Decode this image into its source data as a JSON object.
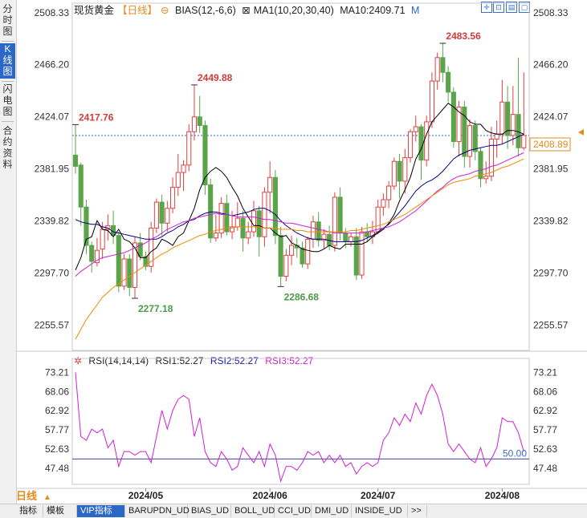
{
  "left_tabs": [
    {
      "label": "分时图",
      "active": false
    },
    {
      "label": "K线图",
      "active": true
    },
    {
      "label": "闪电图",
      "active": false
    },
    {
      "label": "合约资料",
      "active": false
    }
  ],
  "header": {
    "instrument": "现货黄金",
    "period": "【日线】",
    "circle": "⊖",
    "bias": "BIAS(12,-6,6)",
    "ma_toggle": "⊠",
    "ma": "MA1(10,20,30,40)",
    "ma10": "MA10:2409.71",
    "m": "M"
  },
  "rsi_header": {
    "icon": "✲",
    "name": "RSI(14,14,14)",
    "rsi1": "RSI1:52.27",
    "rsi2": "RSI2:52.27",
    "rsi3": "RSI3:52.27"
  },
  "period_selector": {
    "label": "日线",
    "arrow": "▲"
  },
  "bottom_tabs": [
    "指标",
    "模板",
    "VIP指标",
    "BARUPDN_UD",
    "BIAS_UD",
    "BOLL_UD",
    "CCI_UD",
    "DMI_UD",
    "INSIDE_UD",
    ">>"
  ],
  "bottom_active": "VIP指标",
  "colors": {
    "up": "#e04040",
    "down": "#5aa54a",
    "ma10": "#000000",
    "ma20": "#000080",
    "ma30": "#d020d0",
    "ma40": "#f08a00",
    "current": "#e58a1f",
    "rsi": "#d020d0"
  },
  "chart_data": {
    "type": "candlestick",
    "price_ticks": [
      2508.33,
      2466.2,
      2424.07,
      2381.95,
      2339.82,
      2297.7,
      2255.57
    ],
    "ylim": [
      2235,
      2516
    ],
    "current_price": 2408.89,
    "annotations": [
      {
        "label": "2417.76",
        "index": 0,
        "price": 2417.76
      },
      {
        "label": "2449.88",
        "index": 22,
        "price": 2449.88
      },
      {
        "label": "2277.18",
        "index": 11,
        "price": 2277.18
      },
      {
        "label": "2286.68",
        "index": 38,
        "price": 2286.68
      },
      {
        "label": "2483.56",
        "index": 68,
        "price": 2483.56
      }
    ],
    "x_labels": [
      {
        "label": "2024/05",
        "index": 13
      },
      {
        "label": "2024/06",
        "index": 36
      },
      {
        "label": "2024/07",
        "index": 56
      },
      {
        "label": "2024/08",
        "index": 79
      }
    ],
    "candles": [
      [
        2393,
        2384,
        2418,
        2378
      ],
      [
        2385,
        2351,
        2387,
        2336
      ],
      [
        2351,
        2320,
        2357,
        2313
      ],
      [
        2320,
        2307,
        2323,
        2298
      ],
      [
        2306,
        2316,
        2326,
        2303
      ],
      [
        2317,
        2333,
        2339,
        2309
      ],
      [
        2333,
        2336,
        2345,
        2324
      ],
      [
        2336,
        2328,
        2348,
        2321
      ],
      [
        2328,
        2287,
        2331,
        2282
      ],
      [
        2287,
        2309,
        2313,
        2284
      ],
      [
        2309,
        2286,
        2313,
        2279
      ],
      [
        2286,
        2322,
        2327,
        2277
      ],
      [
        2322,
        2311,
        2330,
        2308
      ],
      [
        2311,
        2303,
        2315,
        2300
      ],
      [
        2303,
        2334,
        2339,
        2298
      ],
      [
        2334,
        2355,
        2358,
        2330
      ],
      [
        2355,
        2338,
        2361,
        2328
      ],
      [
        2338,
        2350,
        2356,
        2331
      ],
      [
        2350,
        2367,
        2375,
        2346
      ],
      [
        2367,
        2379,
        2394,
        2360
      ],
      [
        2379,
        2385,
        2389,
        2364
      ],
      [
        2385,
        2412,
        2418,
        2380
      ],
      [
        2412,
        2424,
        2450,
        2405
      ],
      [
        2424,
        2417,
        2441,
        2411
      ],
      [
        2417,
        2369,
        2421,
        2361
      ],
      [
        2369,
        2326,
        2374,
        2322
      ],
      [
        2326,
        2330,
        2345,
        2323
      ],
      [
        2330,
        2354,
        2359,
        2326
      ],
      [
        2354,
        2331,
        2361,
        2328
      ],
      [
        2331,
        2335,
        2348,
        2325
      ],
      [
        2335,
        2342,
        2355,
        2332
      ],
      [
        2342,
        2326,
        2348,
        2315
      ],
      [
        2326,
        2331,
        2339,
        2321
      ],
      [
        2331,
        2348,
        2356,
        2327
      ],
      [
        2348,
        2327,
        2352,
        2311
      ],
      [
        2327,
        2363,
        2367,
        2319
      ],
      [
        2363,
        2375,
        2388,
        2346
      ],
      [
        2375,
        2328,
        2381,
        2321
      ],
      [
        2328,
        2295,
        2335,
        2287
      ],
      [
        2295,
        2312,
        2317,
        2291
      ],
      [
        2312,
        2320,
        2328,
        2304
      ],
      [
        2320,
        2318,
        2326,
        2310
      ],
      [
        2318,
        2305,
        2323,
        2302
      ],
      [
        2305,
        2325,
        2327,
        2301
      ],
      [
        2325,
        2339,
        2344,
        2318
      ],
      [
        2339,
        2324,
        2347,
        2319
      ],
      [
        2324,
        2329,
        2333,
        2317
      ],
      [
        2329,
        2320,
        2336,
        2316
      ],
      [
        2320,
        2359,
        2363,
        2315
      ],
      [
        2359,
        2330,
        2367,
        2324
      ],
      [
        2330,
        2323,
        2334,
        2318
      ],
      [
        2323,
        2327,
        2330,
        2319
      ],
      [
        2327,
        2296,
        2334,
        2292
      ],
      [
        2296,
        2331,
        2335,
        2293
      ],
      [
        2331,
        2327,
        2338,
        2323
      ],
      [
        2327,
        2331,
        2340,
        2321
      ],
      [
        2331,
        2351,
        2357,
        2329
      ],
      [
        2351,
        2357,
        2362,
        2344
      ],
      [
        2357,
        2368,
        2372,
        2350
      ],
      [
        2368,
        2388,
        2391,
        2365
      ],
      [
        2388,
        2372,
        2394,
        2358
      ],
      [
        2372,
        2391,
        2398,
        2362
      ],
      [
        2391,
        2412,
        2414,
        2387
      ],
      [
        2412,
        2416,
        2425,
        2404
      ],
      [
        2416,
        2389,
        2418,
        2373
      ],
      [
        2389,
        2420,
        2425,
        2384
      ],
      [
        2420,
        2453,
        2460,
        2415
      ],
      [
        2453,
        2472,
        2476,
        2446
      ],
      [
        2472,
        2460,
        2484,
        2452
      ],
      [
        2460,
        2444,
        2465,
        2436
      ],
      [
        2444,
        2404,
        2448,
        2399
      ],
      [
        2404,
        2432,
        2437,
        2392
      ],
      [
        2432,
        2392,
        2437,
        2383
      ],
      [
        2392,
        2417,
        2422,
        2383
      ],
      [
        2417,
        2396,
        2421,
        2389
      ],
      [
        2396,
        2374,
        2399,
        2367
      ],
      [
        2374,
        2376,
        2388,
        2370
      ],
      [
        2376,
        2406,
        2416,
        2372
      ],
      [
        2406,
        2410,
        2421,
        2391
      ],
      [
        2410,
        2436,
        2454,
        2402
      ],
      [
        2436,
        2409,
        2449,
        2398
      ],
      [
        2409,
        2426,
        2449,
        2401
      ],
      [
        2426,
        2399,
        2472,
        2392
      ],
      [
        2399,
        2409,
        2460,
        2397
      ]
    ],
    "ma10": [
      2300,
      2310,
      2325,
      2327,
      2340,
      2333,
      2332,
      2327,
      2333,
      2325,
      2323,
      2318,
      2310,
      2310,
      2315,
      2318,
      2325,
      2323,
      2320,
      2327,
      2330,
      2340,
      2350,
      2365,
      2375,
      2380,
      2383,
      2380,
      2375,
      2367,
      2360,
      2350,
      2343,
      2336,
      2336,
      2334,
      2334,
      2330,
      2327,
      2328,
      2322,
      2320,
      2317,
      2316,
      2315,
      2315,
      2317,
      2320,
      2318,
      2317,
      2321,
      2321,
      2321,
      2321,
      2323,
      2327,
      2330,
      2333,
      2338,
      2345,
      2356,
      2365,
      2375,
      2390,
      2398,
      2410,
      2420,
      2425,
      2430,
      2435,
      2432,
      2428,
      2425,
      2420,
      2418,
      2418,
      2413,
      2411,
      2410,
      2410,
      2413,
      2413,
      2412,
      2410
    ],
    "ma20": [
      2341,
      2339,
      2338,
      2337,
      2337,
      2335,
      2334,
      2331,
      2330,
      2329,
      2328,
      2327,
      2326,
      2325,
      2325,
      2325,
      2327,
      2330,
      2332,
      2335,
      2337,
      2340,
      2341,
      2344,
      2346,
      2347,
      2347,
      2346,
      2345,
      2344,
      2345,
      2346,
      2347,
      2349,
      2350,
      2350,
      2348,
      2345,
      2340,
      2336,
      2333,
      2330,
      2328,
      2326,
      2325,
      2325,
      2325,
      2324,
      2323,
      2323,
      2323,
      2323,
      2323,
      2324,
      2326,
      2328,
      2331,
      2334,
      2337,
      2342,
      2347,
      2352,
      2358,
      2364,
      2368,
      2371,
      2373,
      2376,
      2380,
      2385,
      2390,
      2393,
      2395,
      2397,
      2398,
      2399,
      2400,
      2401,
      2401,
      2402,
      2404,
      2406,
      2408,
      2410
    ],
    "ma30": [
      2295,
      2299,
      2302,
      2305,
      2308,
      2310,
      2311,
      2312,
      2313,
      2314,
      2316,
      2318,
      2320,
      2322,
      2325,
      2327,
      2330,
      2333,
      2335,
      2337,
      2339,
      2340,
      2342,
      2343,
      2344,
      2345,
      2346,
      2345,
      2345,
      2344,
      2343,
      2343,
      2343,
      2343,
      2342,
      2341,
      2341,
      2340,
      2339,
      2338,
      2338,
      2337,
      2336,
      2335,
      2334,
      2333,
      2332,
      2331,
      2330,
      2330,
      2330,
      2330,
      2330,
      2330,
      2331,
      2332,
      2333,
      2334,
      2335,
      2337,
      2339,
      2342,
      2345,
      2348,
      2352,
      2356,
      2360,
      2364,
      2367,
      2371,
      2374,
      2376,
      2377,
      2378,
      2380,
      2381,
      2382,
      2384,
      2385,
      2387,
      2389,
      2391,
      2393,
      2395
    ],
    "ma40": [
      2244,
      2252,
      2260,
      2266,
      2272,
      2278,
      2282,
      2286,
      2289,
      2292,
      2295,
      2298,
      2301,
      2304,
      2307,
      2310,
      2313,
      2315,
      2318,
      2320,
      2322,
      2324,
      2326,
      2328,
      2329,
      2331,
      2332,
      2333,
      2334,
      2334,
      2335,
      2335,
      2335,
      2335,
      2335,
      2334,
      2334,
      2334,
      2333,
      2333,
      2333,
      2332,
      2332,
      2331,
      2331,
      2331,
      2331,
      2331,
      2331,
      2331,
      2331,
      2332,
      2332,
      2333,
      2334,
      2335,
      2336,
      2337,
      2339,
      2341,
      2343,
      2345,
      2348,
      2351,
      2354,
      2357,
      2360,
      2363,
      2366,
      2369,
      2371,
      2372,
      2373,
      2374,
      2376,
      2377,
      2378,
      2379,
      2381,
      2383,
      2384,
      2386,
      2388,
      2390
    ],
    "rsi": {
      "ticks": [
        73.21,
        68.06,
        62.92,
        57.77,
        52.63,
        47.48
      ],
      "ylim": [
        44.5,
        75.2
      ],
      "reference": {
        "value": 50.0,
        "label": "50.00"
      },
      "values": [
        73.2,
        56,
        55,
        58,
        57,
        58,
        53,
        55,
        48,
        52,
        52,
        51,
        52,
        52,
        49,
        56,
        63,
        58,
        63,
        66,
        67,
        66,
        56,
        61,
        52,
        49,
        48,
        52,
        50,
        47,
        48,
        53,
        51,
        49,
        52,
        48,
        54,
        51,
        44,
        48,
        48,
        47,
        49,
        52,
        51,
        52,
        49,
        51,
        49,
        51,
        48,
        49,
        46,
        48,
        49,
        48,
        49,
        55,
        57,
        61,
        59,
        62,
        60,
        65,
        62,
        67,
        70,
        67,
        62,
        54,
        52,
        54,
        52,
        50,
        49,
        53,
        48,
        50,
        53,
        61,
        60,
        60,
        57,
        52
      ]
    }
  }
}
